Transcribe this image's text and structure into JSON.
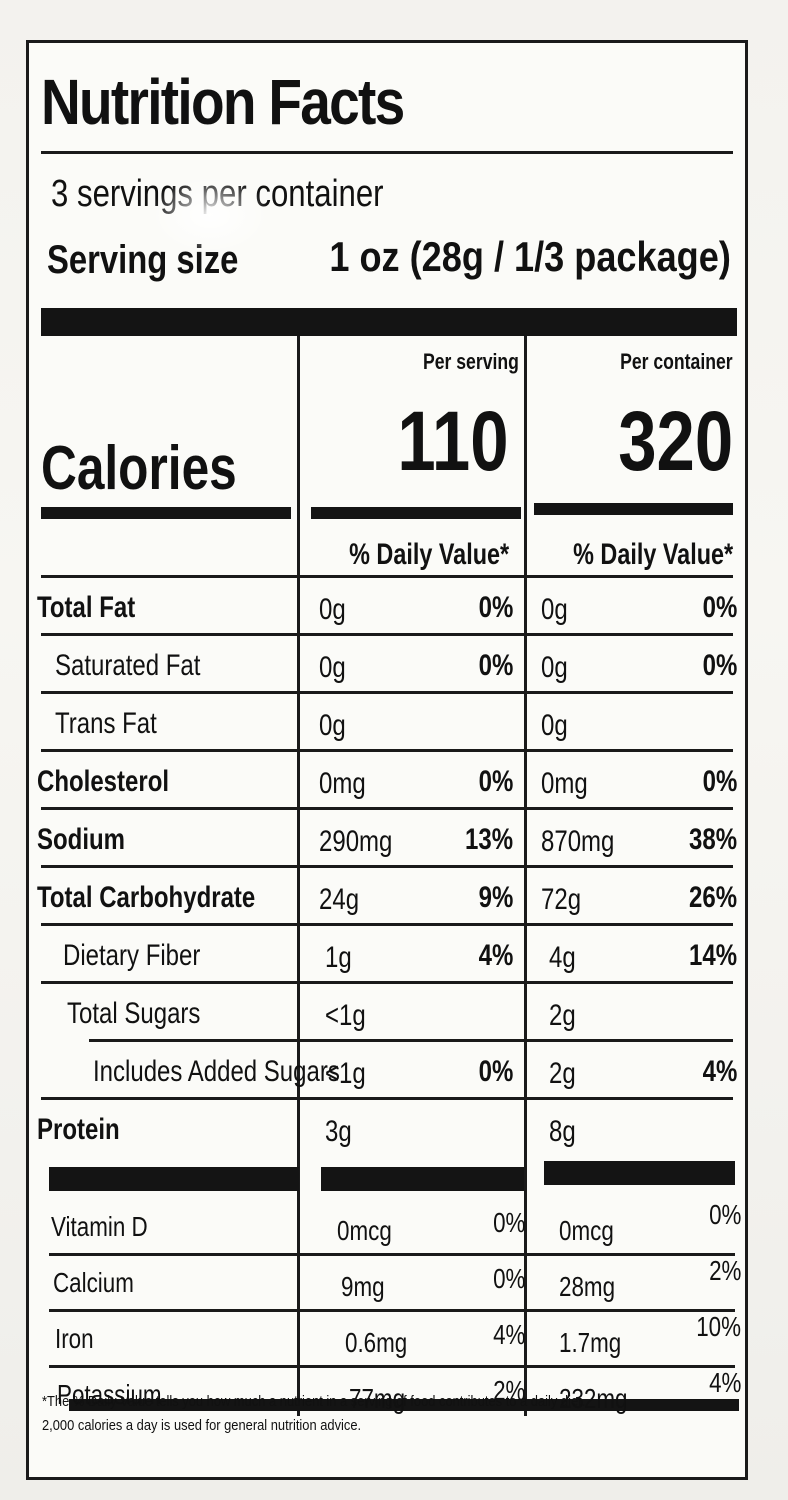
{
  "title": "Nutrition Facts",
  "servings_per_container": "3 servings per container",
  "serving_size_label": "Serving size",
  "serving_size_value": "1 oz (28g / 1/3 package)",
  "columns": {
    "per_serving_label": "Per serving",
    "per_container_label": "Per container",
    "dv_label": "% Daily Value*"
  },
  "calories": {
    "label": "Calories",
    "per_serving": "110",
    "per_container": "320"
  },
  "nutrients": [
    {
      "label": "Total Fat",
      "serving_amt": "0g",
      "serving_dv": "0%",
      "container_amt": "0g",
      "container_dv": "0%"
    },
    {
      "label": "Saturated Fat",
      "serving_amt": "0g",
      "serving_dv": "0%",
      "container_amt": "0g",
      "container_dv": "0%"
    },
    {
      "label": "Trans Fat",
      "serving_amt": "0g",
      "serving_dv": "",
      "container_amt": "0g",
      "container_dv": ""
    },
    {
      "label": "Cholesterol",
      "serving_amt": "0mg",
      "serving_dv": "0%",
      "container_amt": "0mg",
      "container_dv": "0%"
    },
    {
      "label": "Sodium",
      "serving_amt": "290mg",
      "serving_dv": "13%",
      "container_amt": "870mg",
      "container_dv": "38%"
    },
    {
      "label": "Total Carbohydrate",
      "serving_amt": "24g",
      "serving_dv": "9%",
      "container_amt": "72g",
      "container_dv": "26%"
    },
    {
      "label": "Dietary Fiber",
      "serving_amt": "1g",
      "serving_dv": "4%",
      "container_amt": "4g",
      "container_dv": "14%"
    },
    {
      "label": "Total Sugars",
      "serving_amt": "<1g",
      "serving_dv": "",
      "container_amt": "2g",
      "container_dv": ""
    },
    {
      "label": "Includes Added Sugars",
      "serving_amt": "<1g",
      "serving_dv": "0%",
      "container_amt": "2g",
      "container_dv": "4%"
    },
    {
      "label": "Protein",
      "serving_amt": "3g",
      "serving_dv": "",
      "container_amt": "8g",
      "container_dv": ""
    }
  ],
  "vitamins": [
    {
      "label": "Vitamin D",
      "serving_amt": "0mcg",
      "serving_dv": "0%",
      "container_amt": "0mcg",
      "container_dv": "0%"
    },
    {
      "label": "Calcium",
      "serving_amt": "9mg",
      "serving_dv": "0%",
      "container_amt": "28mg",
      "container_dv": "2%"
    },
    {
      "label": "Iron",
      "serving_amt": "0.6mg",
      "serving_dv": "4%",
      "container_amt": "1.7mg",
      "container_dv": "10%"
    },
    {
      "label": "Potassium",
      "serving_amt": "77mg",
      "serving_dv": "2%",
      "container_amt": "232mg",
      "container_dv": "4%"
    }
  ],
  "footnote": [
    "*The % Daily Value tells you how much a nutrient in a serving of food contributes to a daily diet.",
    "2,000 calories a day is used for general nutrition advice."
  ]
}
